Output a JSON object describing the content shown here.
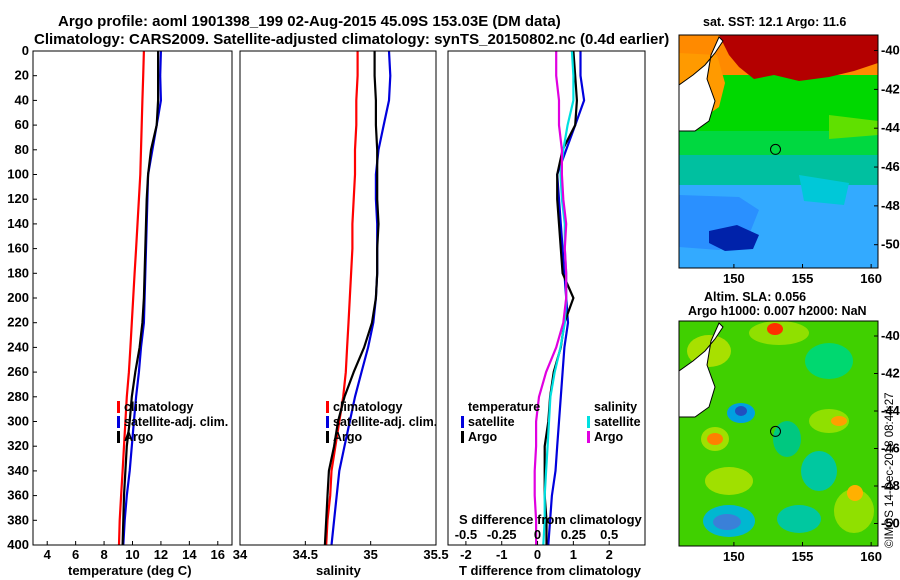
{
  "header": {
    "line1": "Argo profile: aoml 1901398_199 02-Aug-2015 45.09S 153.03E (DM data)",
    "line2": "Climatology: CARS2009. Satellite-adjusted climatology: synTS_20150802.nc (0.4d earlier)"
  },
  "credit": "©IMOS 14-Dec-2018 08:44:27",
  "colors": {
    "climatology": "#ff0000",
    "satellite": "#0000dd",
    "argo": "#000000",
    "s_satellite": "#00e0e0",
    "s_argo": "#e000e0",
    "circle": "#000000"
  },
  "depth_axis": {
    "ticks": [
      0,
      20,
      40,
      60,
      80,
      100,
      120,
      140,
      160,
      180,
      200,
      220,
      240,
      260,
      280,
      300,
      320,
      340,
      360,
      380,
      400
    ]
  },
  "chart_data": [
    {
      "id": "temperature",
      "type": "line",
      "xlabel": "temperature (deg C)",
      "ylabel": "depth",
      "xlim": [
        3,
        17
      ],
      "ylim": [
        400,
        0
      ],
      "xticks": [
        4,
        6,
        8,
        10,
        12,
        14,
        16
      ],
      "legend": {
        "position": "bottom-center",
        "entries": [
          "climatology",
          "satellite-adj. clim.",
          "Argo"
        ]
      },
      "series": [
        {
          "name": "climatology",
          "color": "#ff0000",
          "x": [
            10.8,
            10.75,
            10.7,
            10.65,
            10.6,
            10.55,
            10.45,
            10.35,
            10.25,
            10.15,
            10.05,
            9.95,
            9.85,
            9.75,
            9.6,
            9.5,
            9.4,
            9.3,
            9.2,
            9.1,
            9.05
          ],
          "y": [
            0,
            20,
            40,
            60,
            80,
            100,
            120,
            140,
            160,
            180,
            200,
            220,
            240,
            260,
            280,
            300,
            320,
            340,
            360,
            380,
            400
          ]
        },
        {
          "name": "satellite-adj. clim.",
          "color": "#0000dd",
          "x": [
            12.0,
            11.95,
            12.0,
            11.7,
            11.4,
            11.1,
            11.05,
            11.0,
            10.95,
            10.9,
            10.85,
            10.8,
            10.6,
            10.45,
            10.25,
            10.1,
            9.95,
            9.8,
            9.6,
            9.45,
            9.35
          ],
          "y": [
            0,
            20,
            40,
            60,
            80,
            100,
            120,
            140,
            160,
            180,
            200,
            220,
            240,
            260,
            280,
            300,
            320,
            340,
            360,
            380,
            400
          ]
        },
        {
          "name": "Argo",
          "color": "#000000",
          "x": [
            11.8,
            11.8,
            11.8,
            11.7,
            11.3,
            11.1,
            11.0,
            10.95,
            10.9,
            10.85,
            10.8,
            10.7,
            10.5,
            10.2,
            9.95,
            9.8,
            9.6,
            9.5,
            9.4,
            9.35,
            9.3
          ],
          "y": [
            0,
            20,
            40,
            60,
            80,
            100,
            120,
            140,
            160,
            180,
            200,
            220,
            240,
            260,
            280,
            300,
            320,
            340,
            360,
            380,
            400
          ]
        }
      ]
    },
    {
      "id": "salinity",
      "type": "line",
      "xlabel": "salinity",
      "ylabel": "depth",
      "xlim": [
        34,
        35.5
      ],
      "ylim": [
        400,
        0
      ],
      "xticks": [
        34,
        34.5,
        35,
        35.5
      ],
      "legend": {
        "position": "bottom-center",
        "entries": [
          "climatology",
          "satellite-adj. clim.",
          "Argo"
        ]
      },
      "series": [
        {
          "name": "climatology",
          "color": "#ff0000",
          "x": [
            34.9,
            34.9,
            34.89,
            34.89,
            34.88,
            34.88,
            34.87,
            34.86,
            34.86,
            34.85,
            34.84,
            34.83,
            34.82,
            34.81,
            34.79,
            34.76,
            34.73,
            34.7,
            34.69,
            34.67,
            34.66
          ],
          "y": [
            0,
            20,
            40,
            60,
            80,
            100,
            120,
            140,
            160,
            180,
            200,
            220,
            240,
            260,
            280,
            300,
            320,
            340,
            360,
            380,
            400
          ]
        },
        {
          "name": "satellite-adj. clim.",
          "color": "#0000dd",
          "x": [
            35.14,
            35.15,
            35.14,
            35.1,
            35.06,
            35.04,
            35.04,
            35.05,
            35.05,
            35.05,
            35.04,
            35.02,
            34.98,
            34.93,
            34.88,
            34.84,
            34.8,
            34.76,
            34.74,
            34.72,
            34.7
          ],
          "y": [
            0,
            20,
            40,
            60,
            80,
            100,
            120,
            140,
            160,
            180,
            200,
            220,
            240,
            260,
            280,
            300,
            320,
            340,
            360,
            380,
            400
          ]
        },
        {
          "name": "Argo",
          "color": "#000000",
          "x": [
            35.03,
            35.03,
            35.04,
            35.04,
            35.05,
            35.05,
            35.05,
            35.06,
            35.05,
            35.05,
            35.04,
            35.01,
            34.95,
            34.87,
            34.8,
            34.75,
            34.72,
            34.68,
            34.67,
            34.66,
            34.65
          ],
          "y": [
            0,
            20,
            40,
            60,
            80,
            100,
            120,
            140,
            160,
            180,
            200,
            220,
            240,
            260,
            280,
            300,
            320,
            340,
            360,
            380,
            400
          ]
        }
      ]
    },
    {
      "id": "difference",
      "type": "line",
      "xlabel": "T difference from climatology",
      "x2label": "S difference from climatology",
      "ylabel": "depth",
      "xlim": [
        -2.5,
        3
      ],
      "ylim": [
        400,
        0
      ],
      "xticks": [
        -2,
        -1,
        0,
        1,
        2
      ],
      "x2lim": [
        -0.625,
        0.75
      ],
      "x2ticks": [
        -0.5,
        -0.25,
        0,
        0.25,
        0.5
      ],
      "x2ticklabels": [
        "-0.5",
        "-0.25",
        "0",
        "0.25",
        "0.5"
      ],
      "legend": {
        "position": "bottom",
        "temperature_title": "temperature",
        "salinity_title": "salinity",
        "entries": [
          "satellite",
          "Argo",
          "satellite",
          "Argo"
        ]
      },
      "series": [
        {
          "name": "T satellite",
          "color": "#0000dd",
          "x": [
            1.2,
            1.2,
            1.3,
            1.05,
            0.8,
            0.55,
            0.6,
            0.65,
            0.7,
            0.75,
            0.8,
            0.85,
            0.75,
            0.7,
            0.65,
            0.6,
            0.55,
            0.5,
            0.4,
            0.35,
            0.3
          ],
          "y": [
            0,
            20,
            40,
            60,
            80,
            100,
            120,
            140,
            160,
            180,
            200,
            220,
            240,
            260,
            280,
            300,
            320,
            340,
            360,
            380,
            400
          ]
        },
        {
          "name": "T Argo",
          "color": "#000000",
          "x": [
            1.0,
            1.05,
            1.1,
            1.05,
            0.7,
            0.55,
            0.55,
            0.6,
            0.65,
            0.7,
            1.0,
            0.75,
            0.65,
            0.45,
            0.35,
            0.3,
            0.2,
            0.2,
            0.2,
            0.25,
            0.25
          ],
          "y": [
            0,
            20,
            40,
            60,
            80,
            100,
            120,
            140,
            160,
            180,
            200,
            220,
            240,
            260,
            280,
            300,
            320,
            340,
            360,
            380,
            400
          ]
        },
        {
          "name": "S satellite",
          "color": "#00e0e0",
          "x": [
            0.24,
            0.25,
            0.25,
            0.21,
            0.18,
            0.16,
            0.17,
            0.19,
            0.19,
            0.2,
            0.2,
            0.19,
            0.16,
            0.12,
            0.09,
            0.08,
            0.07,
            0.06,
            0.05,
            0.05,
            0.04
          ],
          "y": [
            0,
            20,
            40,
            60,
            80,
            100,
            120,
            140,
            160,
            180,
            200,
            220,
            240,
            260,
            280,
            300,
            320,
            340,
            360,
            380,
            400
          ]
        },
        {
          "name": "S Argo",
          "color": "#e000e0",
          "x": [
            0.13,
            0.13,
            0.15,
            0.15,
            0.17,
            0.17,
            0.18,
            0.2,
            0.19,
            0.2,
            0.2,
            0.18,
            0.13,
            0.06,
            0.01,
            -0.01,
            -0.01,
            -0.02,
            -0.02,
            -0.01,
            -0.01
          ],
          "y": [
            0,
            20,
            40,
            60,
            80,
            100,
            120,
            140,
            160,
            180,
            200,
            220,
            240,
            260,
            280,
            300,
            320,
            340,
            360,
            380,
            400
          ]
        }
      ]
    },
    {
      "id": "sst_map",
      "type": "heatmap",
      "title": "sat. SST: 12.1 Argo: 11.6",
      "xlim": [
        146,
        160.5
      ],
      "ylim": [
        -51.2,
        -39.2
      ],
      "xticks": [
        150,
        155,
        160
      ],
      "yticks": [
        -40,
        -42,
        -44,
        -46,
        -48,
        -50
      ],
      "marker": {
        "lon": 153.03,
        "lat": -45.09
      }
    },
    {
      "id": "sla_map",
      "type": "heatmap",
      "title": "Altim. SLA: 0.056",
      "subtitle": "Argo h1000: 0.007 h2000: NaN",
      "xlim": [
        146,
        160.5
      ],
      "ylim": [
        -51.2,
        -39.2
      ],
      "xticks": [
        150,
        155,
        160
      ],
      "yticks": [
        -40,
        -42,
        -44,
        -46,
        -48,
        -50
      ],
      "marker": {
        "lon": 153.03,
        "lat": -45.09
      }
    }
  ]
}
